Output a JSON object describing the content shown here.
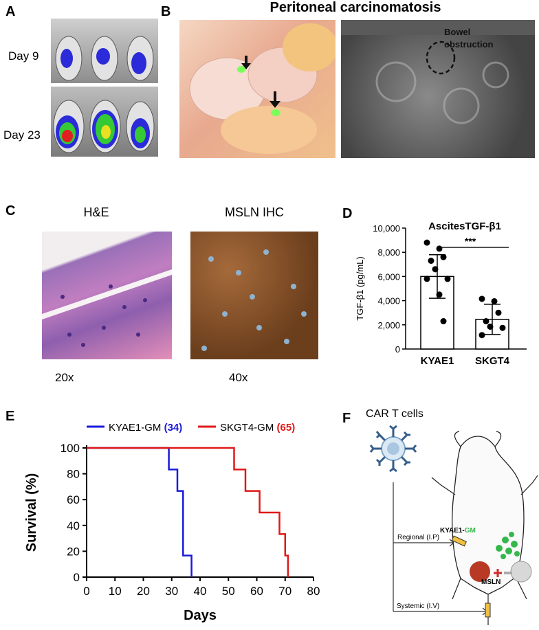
{
  "panels": {
    "A": "A",
    "B": "B",
    "C": "C",
    "D": "D",
    "E": "E",
    "F": "F"
  },
  "panel_a": {
    "day1": "Day 9",
    "day2": "Day 23"
  },
  "panel_b": {
    "title": "Peritoneal carcinomatosis",
    "annotation_line1": "Bowel",
    "annotation_line2": "obstruction"
  },
  "panel_c": {
    "left_title": "H&E",
    "right_title": "MSLN IHC",
    "left_mag": "20x",
    "right_mag": "40x"
  },
  "panel_f": {
    "title": "CAR T cells",
    "regional": "Regional (I.P)",
    "systemic": "Systemic (I.V)",
    "label_prefix": "KYAE1-",
    "label_suffix": "GM",
    "antigen": "MSLN"
  },
  "colors": {
    "kyae1": "#1a1adb",
    "skgt4": "#e01818",
    "gm_green": "#35b84a"
  },
  "chart_data": [
    {
      "type": "bar",
      "title": "AscitesTGF-β1",
      "ylabel": "TGF-β1 (pg/mL)",
      "categories": [
        "KYAE1",
        "SKGT4"
      ],
      "values": [
        6000,
        2450
      ],
      "error": [
        1800,
        1250
      ],
      "points": [
        [
          8800,
          8300,
          7600,
          7300,
          6600,
          5800,
          5800,
          4500,
          2300
        ],
        [
          4150,
          3950,
          3000,
          2300,
          1850,
          1750,
          1150
        ]
      ],
      "ylim": [
        0,
        10000
      ],
      "yticks": [
        "0",
        "2,000",
        "4,000",
        "6,000",
        "8,000",
        "10,000"
      ],
      "significance": "***"
    },
    {
      "type": "line",
      "xlabel": "Days",
      "ylabel": "Survival (%)",
      "xlim": [
        0,
        80
      ],
      "ylim": [
        0,
        100
      ],
      "xticks": [
        "0",
        "10",
        "20",
        "30",
        "40",
        "50",
        "60",
        "70",
        "80"
      ],
      "yticks": [
        "0",
        "20",
        "40",
        "60",
        "80",
        "100"
      ],
      "series": [
        {
          "name": "KYAE1-GM",
          "median": "(34)",
          "color": "#1a1adb",
          "points": [
            [
              0,
              100
            ],
            [
              29,
              100
            ],
            [
              29,
              83.3
            ],
            [
              32,
              83.3
            ],
            [
              32,
              66.7
            ],
            [
              34,
              66.7
            ],
            [
              34,
              16.7
            ],
            [
              37,
              16.7
            ],
            [
              37,
              0
            ]
          ]
        },
        {
          "name": "SKGT4-GM",
          "median": "(65)",
          "color": "#e01818",
          "points": [
            [
              0,
              100
            ],
            [
              52,
              100
            ],
            [
              52,
              83.3
            ],
            [
              56,
              83.3
            ],
            [
              56,
              66.7
            ],
            [
              61,
              66.7
            ],
            [
              61,
              50
            ],
            [
              68,
              50
            ],
            [
              68,
              33.3
            ],
            [
              70,
              33.3
            ],
            [
              70,
              16.7
            ],
            [
              71,
              16.7
            ],
            [
              71,
              0
            ]
          ]
        }
      ]
    }
  ]
}
